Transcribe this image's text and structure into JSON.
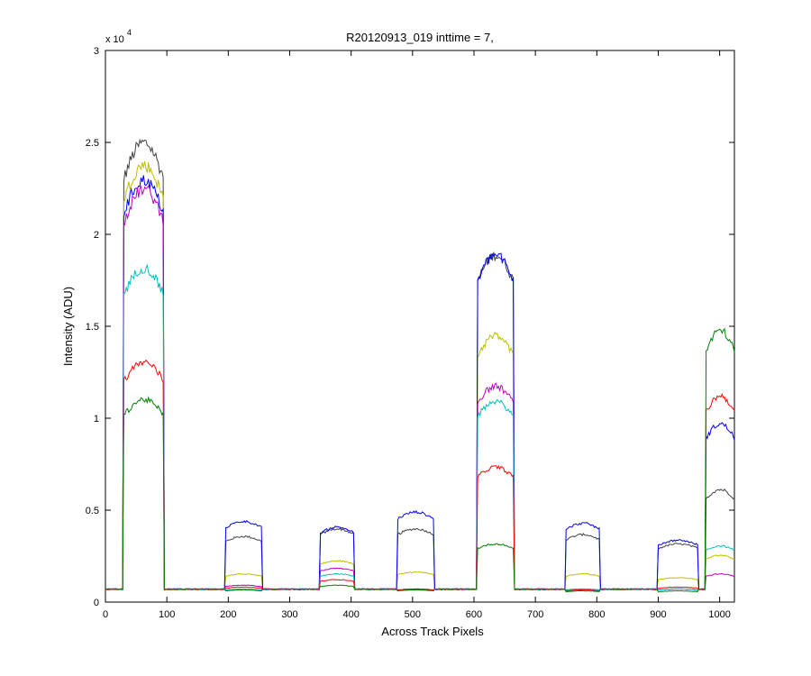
{
  "chart_data": {
    "type": "line",
    "title": "R20120913_019 inttime = 7,",
    "xlabel": "Across Track Pixels",
    "ylabel": "Intensity (ADU)",
    "xlim": [
      0,
      1024
    ],
    "ylim": [
      0,
      30000
    ],
    "xticks": [
      0,
      100,
      200,
      300,
      400,
      500,
      600,
      700,
      800,
      900,
      1000
    ],
    "yticks": [
      0,
      5000,
      10000,
      15000,
      20000,
      25000,
      30000
    ],
    "ytick_labels": [
      "0",
      "0.5",
      "1",
      "1.5",
      "2",
      "2.5",
      "3"
    ],
    "y_multiplier_base": "x 10",
    "y_multiplier_exp": "4",
    "grid": false,
    "baseline": 700,
    "blocks": [
      [
        30,
        95
      ],
      [
        195,
        255
      ],
      [
        350,
        405
      ],
      [
        475,
        535
      ],
      [
        605,
        665
      ],
      [
        750,
        805
      ],
      [
        900,
        965
      ],
      [
        978,
        1024
      ]
    ],
    "series": [
      {
        "color": "#404040",
        "levels": [
          24500,
          3500,
          3900,
          3900,
          18500,
          3600,
          3100,
          6000
        ]
      },
      {
        "color": "#bfbf00",
        "levels": [
          23300,
          1500,
          2200,
          1600,
          14200,
          1500,
          1300,
          2500
        ]
      },
      {
        "color": "#0000ff",
        "levels": [
          22500,
          4300,
          4000,
          4800,
          18500,
          4200,
          3300,
          9500
        ]
      },
      {
        "color": "#bf00bf",
        "levels": [
          22000,
          900,
          1800,
          700,
          11500,
          700,
          700,
          1500
        ]
      },
      {
        "color": "#00bfbf",
        "levels": [
          17800,
          700,
          1500,
          650,
          10700,
          700,
          700,
          3000
        ]
      },
      {
        "color": "#ff0000",
        "levels": [
          12800,
          800,
          1200,
          700,
          7200,
          650,
          800,
          11000
        ]
      },
      {
        "color": "#008000",
        "levels": [
          10800,
          650,
          900,
          650,
          3100,
          600,
          600,
          14500
        ]
      }
    ]
  }
}
